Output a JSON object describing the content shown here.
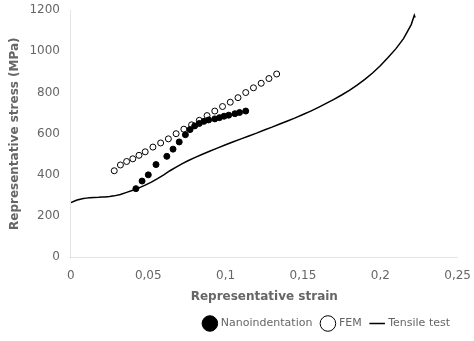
{
  "chart_data": {
    "type": "scatter",
    "xlabel": "Representative strain",
    "ylabel": "Representative stress (MPa)",
    "xlim": [
      0,
      0.25
    ],
    "ylim": [
      0,
      1200
    ],
    "xticks": [
      0,
      {
        "value": 0.05,
        "label": "0,05"
      },
      {
        "value": 0.1,
        "label": "0,1"
      },
      {
        "value": 0.15,
        "label": "0,15"
      },
      {
        "value": 0.2,
        "label": "0,2"
      },
      {
        "value": 0.25,
        "label": "0,25"
      }
    ],
    "yticks": [
      0,
      200,
      400,
      600,
      800,
      1000,
      1200
    ],
    "grid": false,
    "legend": "lower right",
    "series": [
      {
        "name": "Tensile test",
        "type": "line",
        "color": "#000000",
        "line_style": "solid",
        "x": [
          0.0,
          0.002,
          0.004,
          0.006,
          0.008,
          0.01,
          0.012,
          0.015,
          0.018,
          0.02,
          0.022,
          0.025,
          0.028,
          0.032,
          0.036,
          0.04,
          0.044,
          0.048,
          0.052,
          0.056,
          0.06,
          0.064,
          0.068,
          0.072,
          0.076,
          0.08,
          0.085,
          0.09,
          0.095,
          0.1,
          0.105,
          0.11,
          0.115,
          0.12,
          0.125,
          0.13,
          0.135,
          0.14,
          0.145,
          0.15,
          0.155,
          0.16,
          0.165,
          0.17,
          0.175,
          0.18,
          0.185,
          0.19,
          0.195,
          0.2,
          0.205,
          0.21,
          0.215,
          0.22,
          0.222,
          0.2225
        ],
        "values": [
          265,
          272,
          278,
          282,
          285,
          287,
          289,
          290,
          291,
          292,
          293,
          295,
          298,
          305,
          315,
          325,
          337,
          350,
          365,
          382,
          400,
          420,
          438,
          455,
          470,
          484,
          500,
          516,
          531,
          546,
          561,
          575,
          589,
          603,
          618,
          632,
          647,
          662,
          677,
          693,
          710,
          728,
          747,
          767,
          788,
          811,
          836,
          864,
          895,
          930,
          970,
          1012,
          1062,
          1130,
          1175,
          1165
        ]
      },
      {
        "name": "Nanoindentation",
        "type": "scatter",
        "color": "#000000",
        "marker": "circle",
        "x": [
          0.042,
          0.046,
          0.05,
          0.055,
          0.062,
          0.066,
          0.07,
          0.074,
          0.077,
          0.08,
          0.083,
          0.086,
          0.089,
          0.093,
          0.096,
          0.099,
          0.102,
          0.106,
          0.109,
          0.113
        ],
        "values": [
          333,
          370,
          400,
          450,
          490,
          525,
          560,
          595,
          620,
          638,
          650,
          660,
          667,
          672,
          678,
          685,
          690,
          697,
          703,
          710
        ]
      },
      {
        "name": "FEM",
        "type": "scatter",
        "color": "#000000",
        "marker": "ring",
        "x": [
          0.028,
          0.032,
          0.036,
          0.04,
          0.044,
          0.048,
          0.053,
          0.058,
          0.063,
          0.068,
          0.073,
          0.078,
          0.083,
          0.088,
          0.093,
          0.098,
          0.103,
          0.108,
          0.113,
          0.118,
          0.123,
          0.128,
          0.133
        ],
        "values": [
          420,
          448,
          465,
          478,
          495,
          512,
          535,
          555,
          575,
          600,
          622,
          643,
          665,
          688,
          710,
          732,
          753,
          775,
          800,
          823,
          845,
          868,
          890
        ]
      }
    ]
  }
}
